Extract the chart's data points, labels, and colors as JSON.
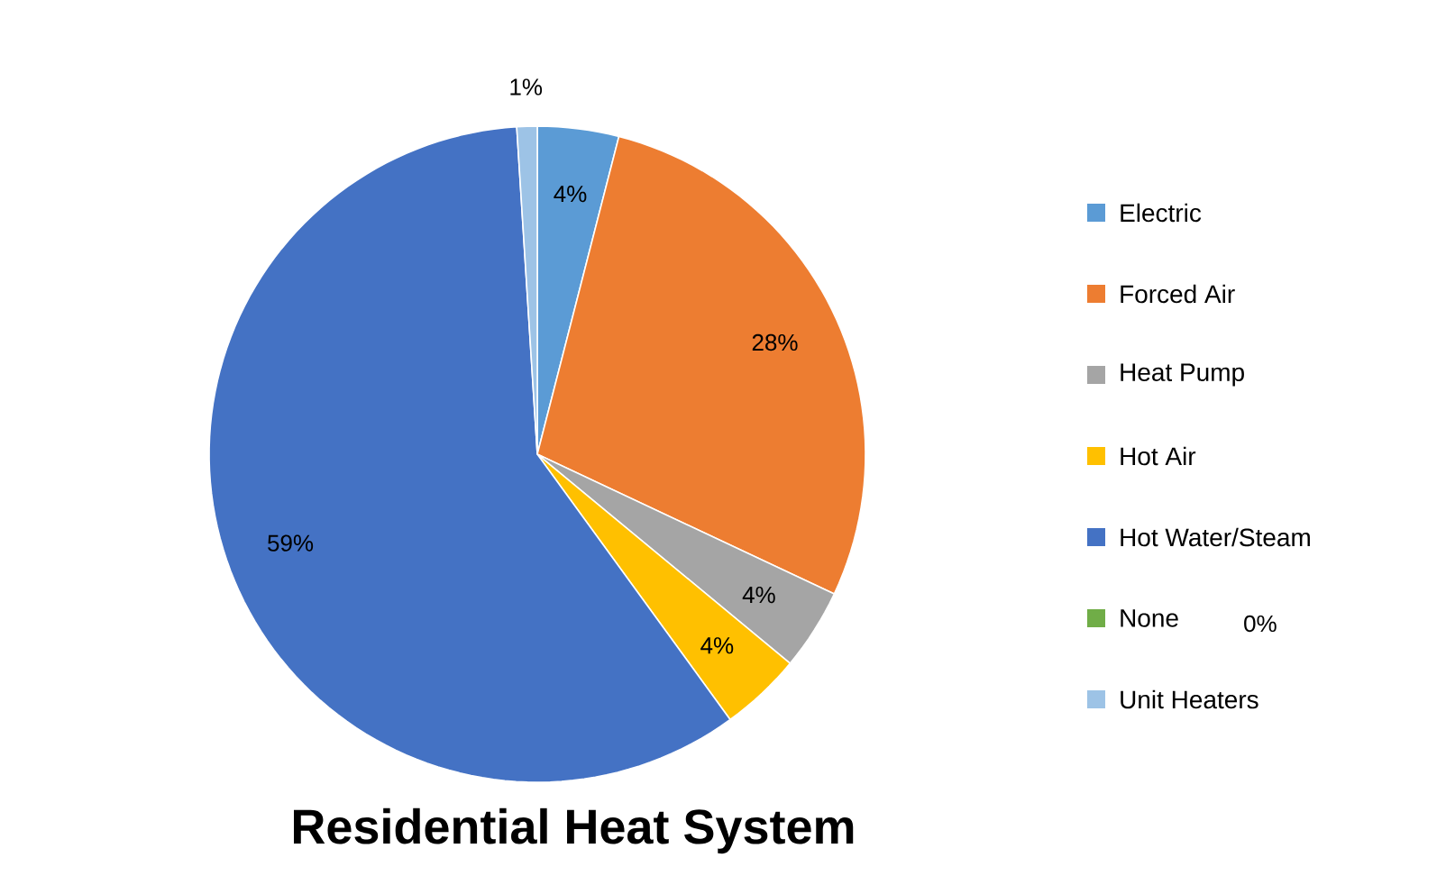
{
  "chart_data": {
    "type": "pie",
    "title": "Residential Heat System",
    "categories": [
      "Electric",
      "Forced Air",
      "Heat Pump",
      "Hot Air",
      "Hot Water/Steam",
      "None",
      "Unit Heaters"
    ],
    "values": [
      4,
      28,
      4,
      4,
      59,
      0,
      1
    ],
    "value_labels": [
      "4%",
      "28%",
      "4%",
      "4%",
      "59%",
      "0%",
      "1%"
    ],
    "colors": [
      "#5b9bd5",
      "#ed7d31",
      "#a5a5a5",
      "#ffc000",
      "#4472c4",
      "#70ad47",
      "#9dc3e6"
    ],
    "legend": "right"
  }
}
